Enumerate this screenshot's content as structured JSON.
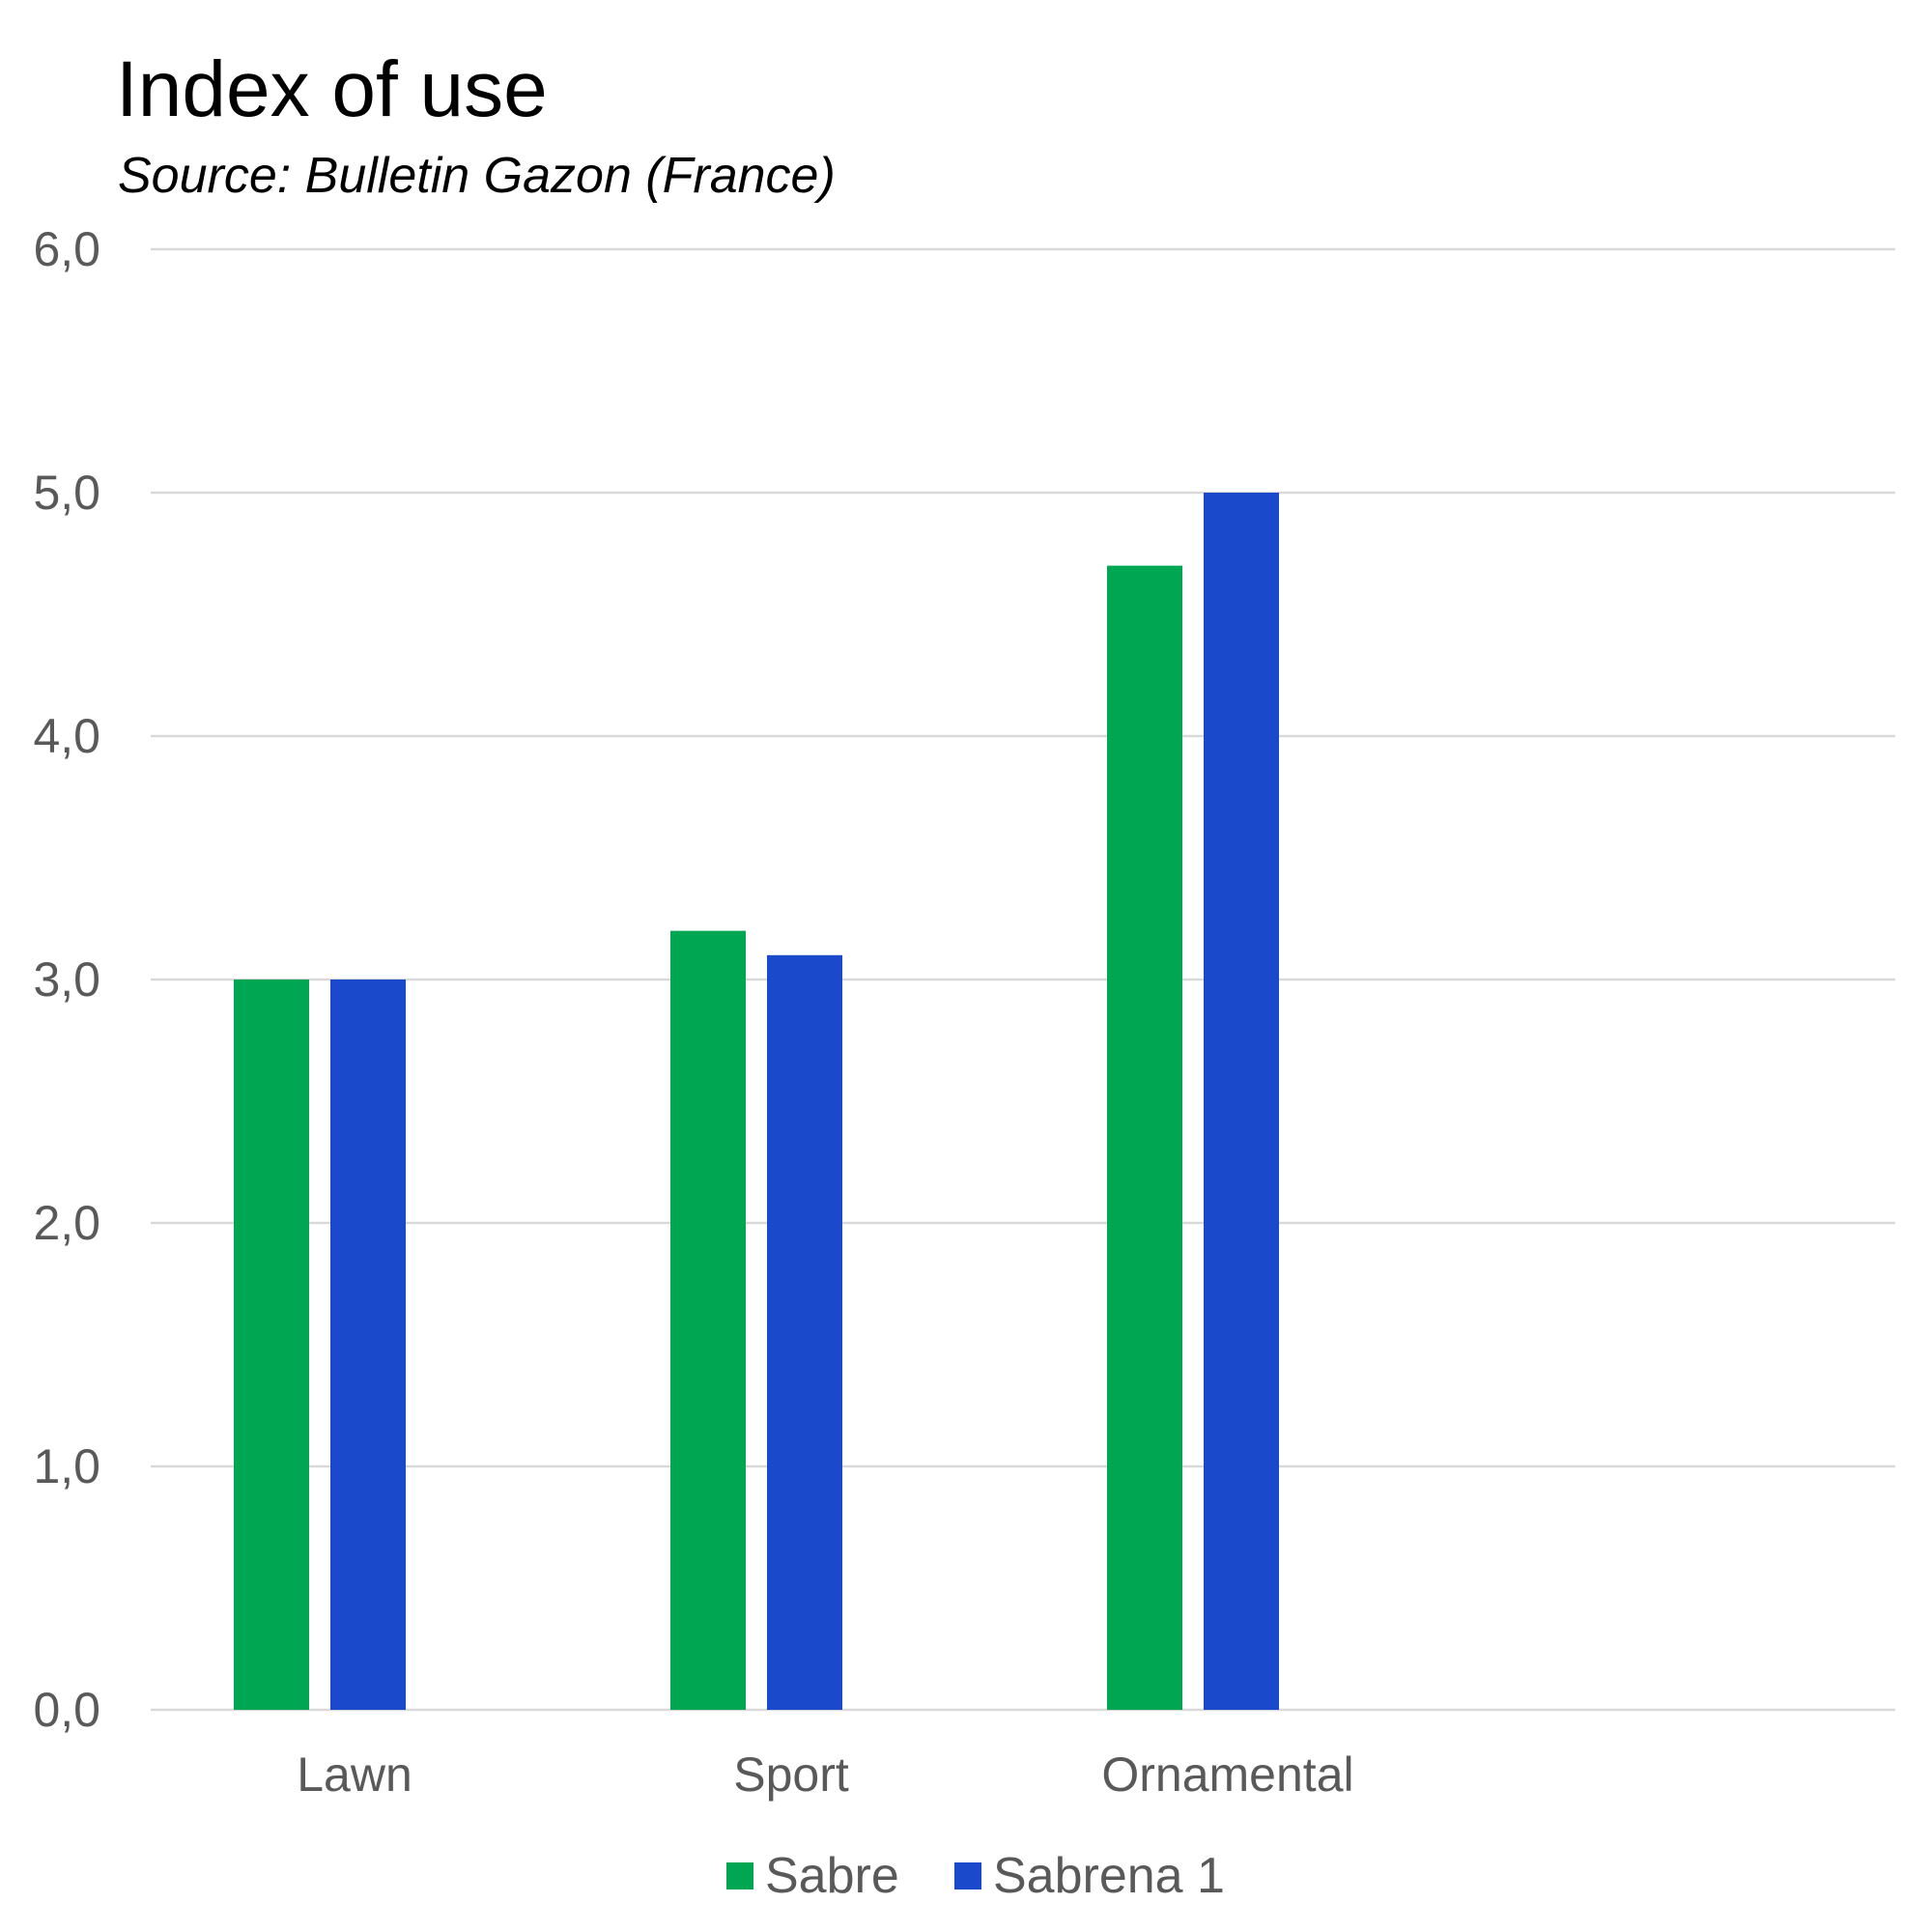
{
  "chart_data": {
    "type": "bar",
    "title": "Index of use",
    "subtitle": "Source: Bulletin Gazon (France)",
    "categories": [
      "Lawn",
      "Sport",
      "Ornamental"
    ],
    "series": [
      {
        "name": "Sabre",
        "values": [
          3.0,
          3.2,
          4.7
        ],
        "color": "#00a651"
      },
      {
        "name": "Sabrena 1",
        "values": [
          3.0,
          3.1,
          5.0
        ],
        "color": "#1a49cc"
      }
    ],
    "ylim": [
      0,
      6
    ],
    "yticks": [
      "0,0",
      "1,0",
      "2,0",
      "3,0",
      "4,0",
      "5,0",
      "6,0"
    ],
    "xlabel": "",
    "ylabel": "",
    "grid": true,
    "legend_position": "bottom",
    "gridline_color": "#d9d9d9",
    "tick_color": "#595959"
  }
}
